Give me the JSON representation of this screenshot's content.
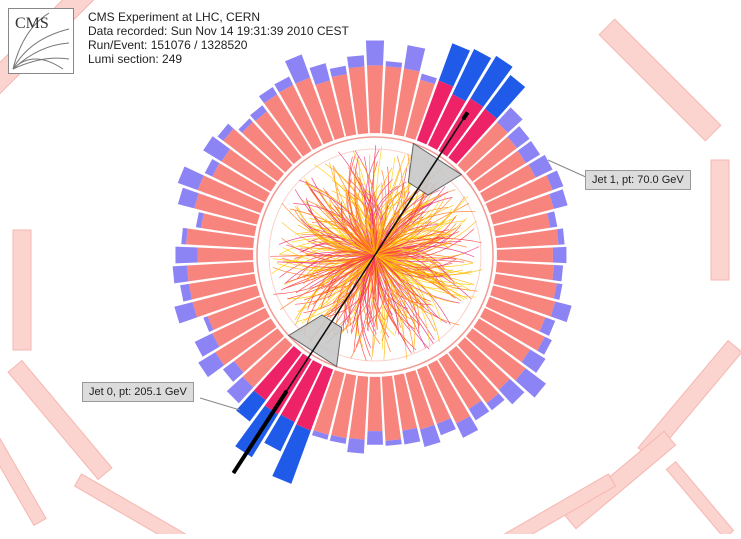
{
  "header": {
    "logo_text": "CMS",
    "lines": [
      "CMS Experiment at LHC, CERN",
      "Data recorded: Sun Nov 14 19:31:39 2010 CEST",
      "Run/Event: 151076 / 1328520",
      "Lumi section: 249"
    ]
  },
  "jets": [
    {
      "label": "Jet 0, pt: 205.1 GeV",
      "angle_deg": 123
    },
    {
      "label": "Jet 1, pt: 70.0 GeV",
      "angle_deg": -57
    }
  ],
  "colors": {
    "ecal": "#f8847e",
    "hcal": "#8c83f4",
    "ecal_hot": "#ee2266",
    "hcal_hot": "#1f5be8",
    "muon_chamber": "#fbd3cf",
    "track_warm": "#ff3b3b",
    "track_yellow": "#ffd000",
    "track_magenta": "#e8307a",
    "jet_cone": "#c8c8c8"
  }
}
